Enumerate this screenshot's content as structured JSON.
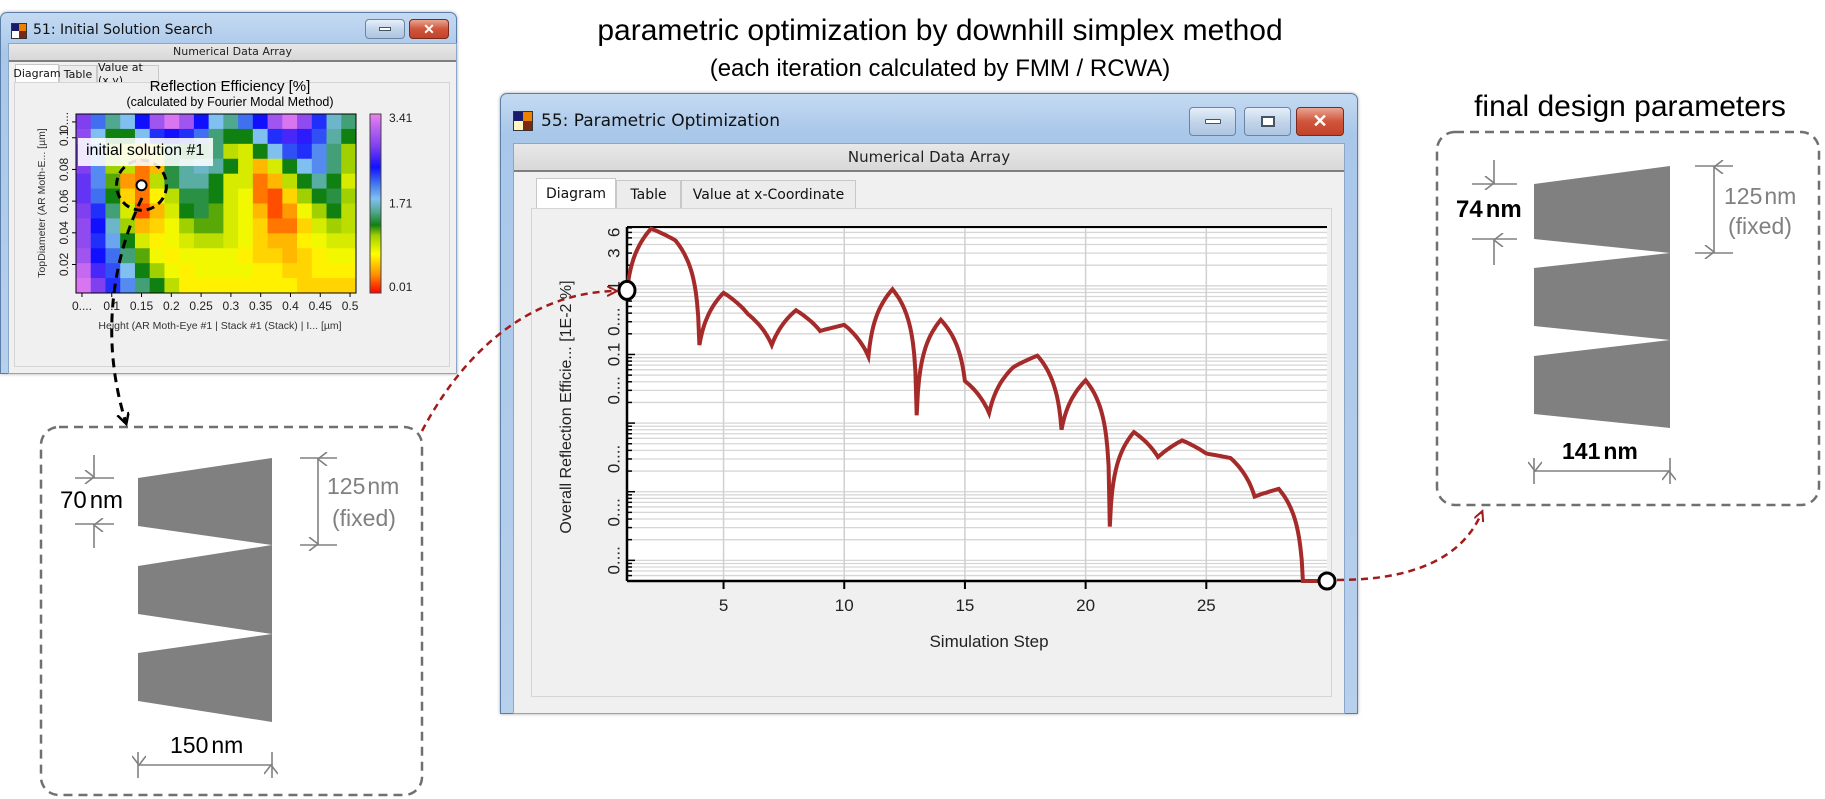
{
  "headings": {
    "main_title": "parametric optimization by downhill simplex method",
    "main_subtitle": "(each iteration calculated by FMM / RCWA)",
    "final_title": "final design parameters"
  },
  "colors": {
    "curve": "#a52a2a",
    "connector_red": "#a01c1c",
    "shape_gray": "#808080",
    "dim_gray": "#808080",
    "close_button": "#c8452c"
  },
  "window_search": {
    "title": "51: Initial Solution Search",
    "strip": "Numerical Data Array",
    "tabs": [
      "Diagram",
      "Table",
      "Value at (x,y)"
    ],
    "active_tab": "Diagram",
    "icons": [
      "app-icon",
      "minimize-icon",
      "maximize-icon",
      "close-icon"
    ]
  },
  "window_opt": {
    "title": "55: Parametric Optimization",
    "strip": "Numerical Data Array",
    "tabs": [
      "Diagram",
      "Table",
      "Value at x-Coordinate"
    ],
    "active_tab": "Diagram",
    "icons": [
      "app-icon",
      "minimize-icon",
      "maximize-icon",
      "close-icon"
    ]
  },
  "annotation": {
    "initial_solution": "initial solution #1"
  },
  "initial_design": {
    "top_diameter": "70",
    "height": "150",
    "period": "125",
    "unit": "nm",
    "fixed": "(fixed)"
  },
  "final_design": {
    "top_diameter": "74",
    "height": "141",
    "period": "125",
    "unit": "nm",
    "fixed": "(fixed)"
  },
  "chart_data": [
    {
      "type": "heatmap",
      "title": "Reflection Efficiency [%]",
      "subtitle": "(calculated by Fourier Modal Method)",
      "xlabel": "Height (AR Moth-Eye #1 | Stack #1 (Stack) | I... [µm]",
      "ylabel": "TopDiameter (AR Moth-E... [µm]",
      "xlim": [
        0.04,
        0.51
      ],
      "ylim": [
        0.002,
        0.115
      ],
      "xticks": [
        {
          "v": 0.05,
          "label": "0...."
        },
        {
          "v": 0.1,
          "label": "0.1"
        },
        {
          "v": 0.15,
          "label": "0.15"
        },
        {
          "v": 0.2,
          "label": "0.2"
        },
        {
          "v": 0.25,
          "label": "0.25"
        },
        {
          "v": 0.3,
          "label": "0.3"
        },
        {
          "v": 0.35,
          "label": "0.35"
        },
        {
          "v": 0.4,
          "label": "0.4"
        },
        {
          "v": 0.45,
          "label": "0.45"
        },
        {
          "v": 0.5,
          "label": "0.5"
        }
      ],
      "yticks": [
        {
          "v": 0.11,
          "label": "0...."
        },
        {
          "v": 0.1,
          "label": "0.1"
        },
        {
          "v": 0.08,
          "label": "0.08"
        },
        {
          "v": 0.06,
          "label": "0.06"
        },
        {
          "v": 0.04,
          "label": "0.04"
        },
        {
          "v": 0.02,
          "label": "0.02"
        }
      ],
      "colorbar": {
        "min": 0.01,
        "mid": 1.71,
        "max": 3.41,
        "labels": [
          "3.41",
          "1.71",
          "0.01"
        ]
      },
      "marker": {
        "x": 0.15,
        "y": 0.07
      },
      "values_rows_top_to_bottom": [
        [
          2.8,
          2.1,
          1.55,
          1.8,
          2.4,
          3.0,
          3.3,
          3.0,
          2.4,
          1.8,
          1.55,
          2.1,
          2.4,
          3.0,
          3.3,
          2.9,
          2.3,
          1.7,
          1.5
        ],
        [
          2.9,
          1.8,
          1.3,
          1.3,
          1.8,
          2.3,
          2.4,
          2.3,
          2.1,
          1.5,
          1.3,
          1.3,
          1.8,
          2.3,
          2.6,
          2.5,
          2.2,
          1.6,
          1.3
        ],
        [
          2.8,
          2.0,
          1.1,
          0.9,
          0.6,
          0.9,
          1.5,
          1.3,
          1.4,
          1.5,
          1.0,
          0.9,
          1.3,
          1.8,
          2.2,
          2.3,
          2.0,
          1.5,
          1.1
        ],
        [
          2.8,
          2.0,
          1.1,
          1.0,
          0.3,
          0.5,
          1.4,
          1.6,
          1.7,
          1.6,
          1.3,
          0.9,
          0.5,
          0.9,
          1.3,
          1.8,
          2.0,
          1.5,
          1.1
        ],
        [
          2.7,
          2.0,
          1.2,
          0.4,
          0.3,
          1.0,
          1.4,
          1.6,
          1.6,
          1.3,
          0.9,
          0.9,
          0.3,
          0.5,
          1.0,
          1.3,
          1.6,
          1.3,
          0.9
        ],
        [
          2.7,
          2.1,
          1.3,
          0.6,
          0.3,
          0.7,
          1.0,
          1.4,
          1.4,
          1.3,
          0.9,
          0.8,
          0.3,
          0.2,
          0.6,
          1.1,
          1.3,
          1.4,
          1.1
        ],
        [
          2.8,
          2.3,
          1.5,
          0.9,
          0.2,
          0.5,
          0.9,
          1.3,
          1.4,
          1.2,
          0.9,
          0.8,
          0.5,
          0.2,
          0.4,
          0.8,
          1.1,
          1.3,
          1.0
        ],
        [
          2.9,
          2.4,
          1.7,
          1.1,
          0.5,
          0.6,
          0.8,
          1.1,
          1.2,
          1.2,
          0.9,
          0.8,
          0.6,
          0.3,
          0.3,
          0.6,
          0.9,
          1.1,
          1.0
        ],
        [
          2.9,
          2.3,
          1.9,
          1.3,
          0.9,
          0.7,
          0.8,
          0.9,
          1.0,
          1.0,
          0.9,
          0.8,
          0.6,
          0.5,
          0.5,
          0.7,
          0.8,
          0.9,
          0.9
        ],
        [
          3.0,
          2.4,
          2.1,
          1.5,
          1.2,
          0.8,
          0.7,
          0.8,
          0.8,
          0.8,
          0.8,
          0.7,
          0.6,
          0.6,
          0.5,
          0.6,
          0.7,
          0.8,
          0.8
        ],
        [
          3.2,
          2.6,
          2.2,
          1.8,
          1.3,
          1.1,
          0.8,
          0.7,
          0.8,
          0.8,
          0.8,
          0.8,
          0.7,
          0.7,
          0.6,
          0.6,
          0.7,
          0.7,
          0.7
        ],
        [
          3.3,
          2.8,
          2.3,
          2.0,
          1.5,
          1.3,
          1.0,
          0.7,
          0.7,
          0.7,
          0.7,
          0.7,
          0.7,
          0.7,
          0.7,
          0.6,
          0.6,
          0.6,
          0.6
        ]
      ]
    },
    {
      "type": "line",
      "xlabel": "Simulation Step",
      "ylabel": "Overall Reflection Efficie... [1E-2 %]",
      "yscale": "log",
      "grid": true,
      "xlim": [
        1,
        30
      ],
      "ylim": [
        5e-05,
        7.2
      ],
      "xticks": [
        5,
        10,
        15,
        20,
        25
      ],
      "yticks": [
        {
          "v": 6,
          "label": "6"
        },
        {
          "v": 3,
          "label": "3"
        },
        {
          "v": 1,
          "label": "1"
        },
        {
          "v": 0.3,
          "label": "0...."
        },
        {
          "v": 0.1,
          "label": "0.1"
        },
        {
          "v": 0.03,
          "label": "0...."
        },
        {
          "v": 0.003,
          "label": "0...."
        },
        {
          "v": 0.0005,
          "label": "0...."
        },
        {
          "v": 0.0001,
          "label": "0...."
        }
      ],
      "x": [
        1,
        2,
        3,
        4,
        5,
        6,
        7,
        8,
        9,
        10,
        11,
        12,
        13,
        14,
        15,
        16,
        17,
        18,
        19,
        20,
        21,
        22,
        23,
        24,
        25,
        26,
        27,
        28,
        29,
        30
      ],
      "y": [
        0.86,
        6.8,
        4.6,
        0.137,
        0.79,
        0.39,
        0.137,
        0.44,
        0.22,
        0.27,
        0.093,
        0.89,
        0.013,
        0.32,
        0.041,
        0.014,
        0.065,
        0.096,
        0.008,
        0.042,
        0.00031,
        0.0074,
        0.0032,
        0.0056,
        0.0036,
        0.0031,
        0.00085,
        0.0011,
        5e-05,
        5e-05
      ],
      "markers": [
        {
          "x": 1,
          "label": "start"
        },
        {
          "x": 30,
          "label": "end"
        }
      ]
    }
  ]
}
